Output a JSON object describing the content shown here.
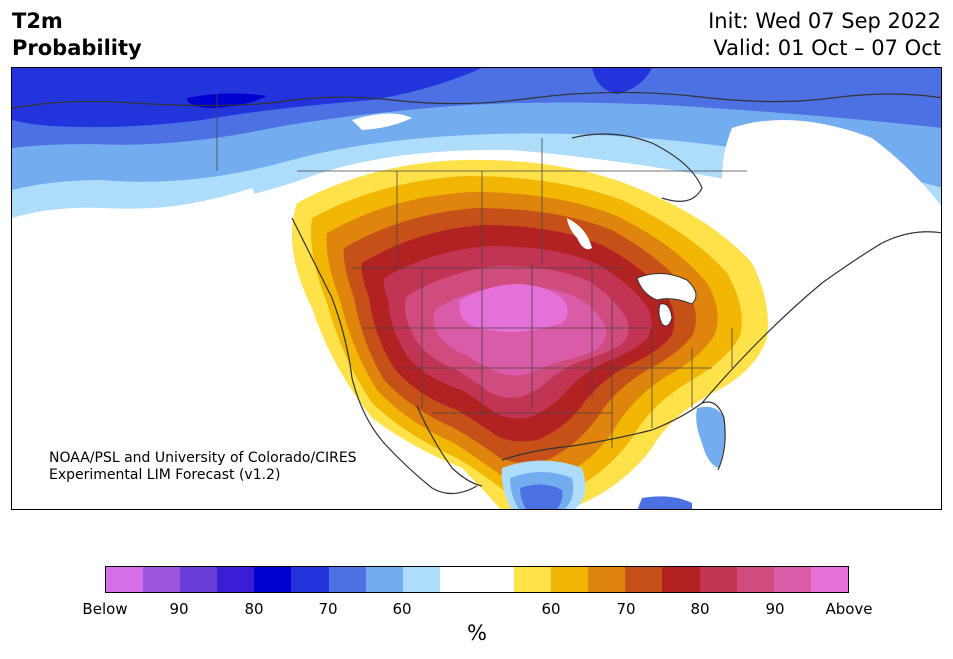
{
  "header": {
    "title_line1": "T2m",
    "title_line2": "Probability",
    "init_text": "Init: Wed 07 Sep 2022",
    "valid_text": "Valid: 01 Oct – 07 Oct"
  },
  "credit": {
    "line1": "NOAA/PSL and University of Colorado/CIRES",
    "line2": "Experimental LIM Forecast (v1.2)"
  },
  "colorbar": {
    "unit": "%",
    "colors": [
      "#d56fe8",
      "#9c55dd",
      "#6a3dd8",
      "#3a1ed6",
      "#0000d1",
      "#2235dc",
      "#4d70e3",
      "#74acf0",
      "#aedcfb",
      "#ffffff",
      "#ffffff",
      "#ffe14a",
      "#f2b705",
      "#df840c",
      "#c65118",
      "#b22222",
      "#c13454",
      "#d04c7e",
      "#da5ba8",
      "#e570d8"
    ],
    "labels": [
      "Below",
      "90",
      "80",
      "70",
      "60",
      "60",
      "70",
      "80",
      "90",
      "Above"
    ]
  },
  "map": {
    "region": "North America",
    "cold_colors": [
      "#2235dc",
      "#4d70e3",
      "#74acf0",
      "#aedcfb"
    ],
    "warm_colors": [
      "#ffe14a",
      "#f2b705",
      "#df840c",
      "#c65118",
      "#b22222",
      "#c13454",
      "#d04c7e",
      "#da5ba8"
    ]
  }
}
